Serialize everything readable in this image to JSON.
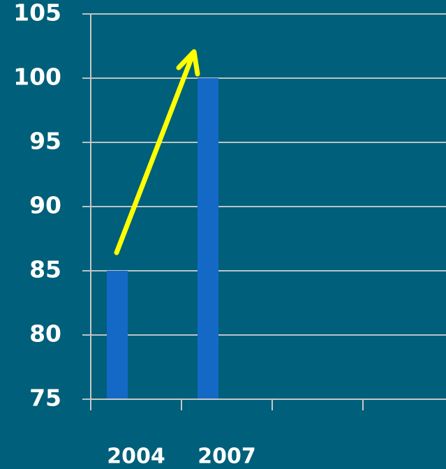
{
  "chart_data": {
    "type": "bar",
    "categories": [
      "2004",
      "2007",
      null,
      null
    ],
    "values": [
      85,
      100,
      null,
      null
    ],
    "color": "#1469c7",
    "ylim": [
      75,
      105
    ],
    "yticks": [
      75,
      80,
      85,
      90,
      95,
      100,
      105
    ],
    "grid": true
  }
}
